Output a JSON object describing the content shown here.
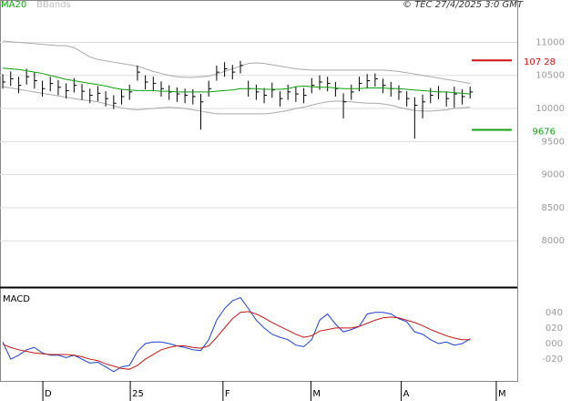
{
  "chart_data": [
    {
      "type": "ohlc",
      "legend": [
        "MA20",
        "BBands"
      ],
      "credit": "© TEC 27/4/2025 3:0 GMT",
      "xlim": [
        -0.35,
        64.95
      ],
      "xticks": [
        {
          "value": 5.06,
          "label": "D"
        },
        {
          "value": 16.1,
          "label": "25"
        },
        {
          "value": 27.8,
          "label": "F"
        },
        {
          "value": 38.9,
          "label": "M"
        },
        {
          "value": 50.3,
          "label": "A"
        },
        {
          "value": 62.3,
          "label": "M"
        }
      ],
      "ylim": [
        7300,
        11640
      ],
      "yticks": [
        8000,
        8500,
        9000,
        9500,
        10000,
        10500,
        11000
      ],
      "grid": true,
      "close": [
        10400,
        10450,
        10350,
        10480,
        10420,
        10300,
        10380,
        10320,
        10270,
        10350,
        10260,
        10200,
        10230,
        10150,
        10080,
        10180,
        10250,
        10550,
        10400,
        10380,
        10300,
        10250,
        10220,
        10200,
        10180,
        10100,
        10300,
        10550,
        10600,
        10550,
        10650,
        10300,
        10250,
        10200,
        10280,
        10150,
        10250,
        10220,
        10200,
        10350,
        10400,
        10380,
        10300,
        10100,
        10250,
        10380,
        10420,
        10450,
        10350,
        10300,
        10250,
        10150,
        10050,
        10100,
        10200,
        10250,
        10150,
        10220,
        10180,
        10250
      ],
      "high": [
        10520,
        10560,
        10480,
        10600,
        10550,
        10420,
        10480,
        10430,
        10380,
        10460,
        10370,
        10300,
        10340,
        10260,
        10200,
        10290,
        10360,
        10650,
        10500,
        10480,
        10410,
        10350,
        10320,
        10300,
        10290,
        10220,
        10420,
        10650,
        10700,
        10660,
        10720,
        10420,
        10360,
        10310,
        10390,
        10260,
        10360,
        10330,
        10310,
        10460,
        10500,
        10480,
        10400,
        10230,
        10360,
        10480,
        10520,
        10530,
        10450,
        10400,
        10350,
        10260,
        10170,
        10210,
        10310,
        10340,
        10260,
        10330,
        10290,
        10330
      ],
      "low": [
        10300,
        10340,
        10230,
        10360,
        10300,
        10180,
        10260,
        10200,
        10150,
        10240,
        10130,
        10080,
        10110,
        10030,
        9990,
        10060,
        10130,
        10420,
        10290,
        10260,
        10180,
        10130,
        10100,
        10080,
        10060,
        9680,
        10180,
        10420,
        10480,
        10440,
        10530,
        10180,
        10130,
        10080,
        10160,
        10030,
        10130,
        10100,
        10080,
        10230,
        10280,
        10260,
        10180,
        9850,
        10130,
        10260,
        10300,
        10330,
        10230,
        10180,
        10130,
        10030,
        9545,
        9850,
        10080,
        10140,
        10030,
        10010,
        10060,
        10150
      ],
      "ma": {
        "name": "MA20",
        "color": "#10a010",
        "values": [
          10610,
          10600,
          10590,
          10570,
          10550,
          10530,
          10500,
          10470,
          10440,
          10420,
          10400,
          10380,
          10360,
          10340,
          10310,
          10290,
          10280,
          10270,
          10270,
          10270,
          10260,
          10260,
          10250,
          10250,
          10250,
          10250,
          10250,
          10260,
          10270,
          10280,
          10300,
          10300,
          10300,
          10290,
          10290,
          10290,
          10300,
          10330,
          10340,
          10330,
          10320,
          10320,
          10310,
          10300,
          10300,
          10300,
          10310,
          10310,
          10310,
          10300,
          10300,
          10290,
          10280,
          10270,
          10260,
          10250,
          10250,
          10240,
          10230,
          10220
        ]
      },
      "bb_upper": [
        11020,
        11010,
        11000,
        10990,
        10980,
        10970,
        10960,
        10950,
        10950,
        10920,
        10850,
        10780,
        10740,
        10720,
        10700,
        10680,
        10660,
        10640,
        10600,
        10560,
        10530,
        10500,
        10480,
        10470,
        10470,
        10480,
        10490,
        10520,
        10560,
        10600,
        10640,
        10680,
        10690,
        10680,
        10660,
        10640,
        10620,
        10600,
        10590,
        10580,
        10580,
        10580,
        10580,
        10580,
        10580,
        10580,
        10580,
        10580,
        10580,
        10570,
        10560,
        10540,
        10520,
        10500,
        10480,
        10460,
        10440,
        10420,
        10400,
        10380
      ],
      "bb_lower": [
        10330,
        10310,
        10290,
        10270,
        10250,
        10230,
        10210,
        10190,
        10170,
        10150,
        10130,
        10120,
        10100,
        10070,
        10040,
        10010,
        9990,
        9980,
        9990,
        10000,
        10010,
        10020,
        10010,
        10000,
        9980,
        9960,
        9940,
        9920,
        9920,
        9920,
        9920,
        9920,
        9920,
        9920,
        9930,
        9950,
        9970,
        10000,
        10020,
        10050,
        10080,
        10100,
        10110,
        10110,
        10100,
        10090,
        10080,
        10080,
        10070,
        10050,
        10020,
        9990,
        9970,
        9960,
        9960,
        9970,
        9980,
        10000,
        10010,
        10020
      ],
      "bb_color": "#aaaaaa",
      "bar_color": "#000000",
      "levels": [
        {
          "value": 10728,
          "label": "107 28",
          "color": "#d01010"
        },
        {
          "value": 9676,
          "label": "9676",
          "color": "#10a010"
        }
      ]
    },
    {
      "type": "line",
      "title": "MACD",
      "xlim": [
        -0.35,
        64.95
      ],
      "ylim": [
        -48,
        69
      ],
      "yticks": [
        {
          "value": 40,
          "label": "040"
        },
        {
          "value": 20,
          "label": "020"
        },
        {
          "value": 0,
          "label": "000"
        },
        {
          "value": -20,
          "label": "-020"
        }
      ],
      "series": [
        {
          "color": "#1f3fd0",
          "values": [
            2,
            -20,
            -15,
            -8,
            -5,
            -12,
            -15,
            -15,
            -18,
            -15,
            -20,
            -25,
            -24,
            -30,
            -36,
            -30,
            -28,
            -10,
            0,
            2,
            2,
            0,
            -3,
            -5,
            -8,
            -9,
            5,
            30,
            45,
            55,
            59,
            45,
            30,
            20,
            12,
            8,
            5,
            -2,
            -4,
            5,
            30,
            38,
            25,
            15,
            18,
            22,
            38,
            40,
            40,
            38,
            32,
            28,
            15,
            12,
            5,
            0,
            2,
            -2,
            0,
            6
          ]
        },
        {
          "color": "#c01818",
          "values": [
            -1,
            -5,
            -8,
            -10,
            -12,
            -13,
            -14,
            -14,
            -14,
            -15,
            -17,
            -20,
            -22,
            -26,
            -29,
            -32,
            -33,
            -28,
            -20,
            -14,
            -8,
            -5,
            -3,
            -3,
            -5,
            -6,
            -3,
            8,
            20,
            32,
            40,
            41,
            38,
            33,
            27,
            22,
            17,
            12,
            8,
            10,
            16,
            18,
            20,
            20,
            20,
            22,
            26,
            30,
            33,
            34,
            33,
            30,
            27,
            23,
            18,
            14,
            10,
            7,
            5,
            5
          ]
        }
      ]
    }
  ]
}
